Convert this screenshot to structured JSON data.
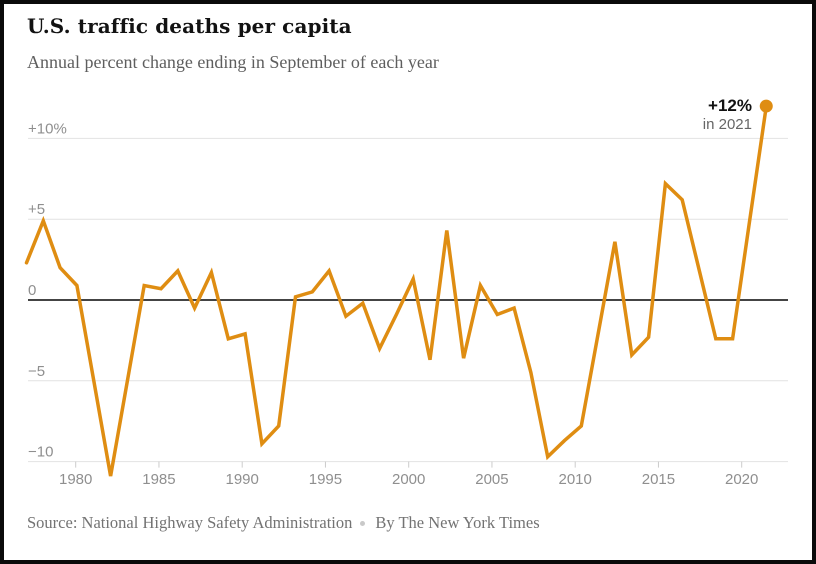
{
  "header": {
    "title": "U.S. traffic deaths per capita",
    "subtitle": "Annual percent change ending in September of each year"
  },
  "chart_data": {
    "type": "line",
    "title": "U.S. traffic deaths per capita",
    "subtitle": "Annual percent change ending in September of each year",
    "series_name": "Annual percent change in traffic deaths per capita",
    "x": [
      1977,
      1978,
      1979,
      1980,
      1981,
      1982,
      1983,
      1984,
      1985,
      1986,
      1987,
      1988,
      1989,
      1990,
      1991,
      1992,
      1993,
      1994,
      1995,
      1996,
      1997,
      1998,
      1999,
      2000,
      2001,
      2002,
      2003,
      2004,
      2005,
      2006,
      2007,
      2008,
      2009,
      2010,
      2011,
      2012,
      2013,
      2014,
      2015,
      2016,
      2017,
      2018,
      2019,
      2020,
      2021
    ],
    "values": [
      2.3,
      4.9,
      2.0,
      0.9,
      -5.0,
      -10.9,
      -5.0,
      0.9,
      0.7,
      1.8,
      -0.5,
      1.7,
      -2.4,
      -2.1,
      -8.9,
      -7.8,
      0.2,
      0.5,
      1.8,
      -1.0,
      -0.2,
      -3.0,
      -0.9,
      1.3,
      -3.7,
      4.3,
      -3.6,
      0.9,
      -0.9,
      -0.5,
      -4.5,
      -9.7,
      -8.7,
      -7.8,
      -2.1,
      3.6,
      -3.4,
      -2.3,
      7.2,
      6.2,
      1.9,
      -2.4,
      -2.4,
      4.8,
      12.0
    ],
    "ylim": [
      -12,
      13
    ],
    "yticks": [
      {
        "value": 10,
        "label": "+10%"
      },
      {
        "value": 5,
        "label": "+5"
      },
      {
        "value": 0,
        "label": "0"
      },
      {
        "value": -5,
        "label": "−5"
      },
      {
        "value": -10,
        "label": "−10"
      }
    ],
    "xticks": [
      {
        "year": 1980,
        "label": "1980"
      },
      {
        "year": 1985,
        "label": "1985"
      },
      {
        "year": 1990,
        "label": "1990"
      },
      {
        "year": 1995,
        "label": "1995"
      },
      {
        "year": 2000,
        "label": "2000"
      },
      {
        "year": 2005,
        "label": "2005"
      },
      {
        "year": 2010,
        "label": "2010"
      },
      {
        "year": 2015,
        "label": "2015"
      },
      {
        "year": 2020,
        "label": "2020"
      }
    ],
    "grid": "horizontal gridlines, darker zero baseline, legend none",
    "line_color": "#DF8D12",
    "grid_color": "#e2e2e2",
    "zero_line_color": "#444444",
    "tick_color": "#cccccc",
    "end_point": {
      "year": 2021,
      "value": 12.0
    },
    "annotation": {
      "value_label": "+12%",
      "sublabel": "in 2021"
    }
  },
  "footer": {
    "source": "Source: National Highway Safety Administration",
    "byline": "By The New York Times"
  }
}
